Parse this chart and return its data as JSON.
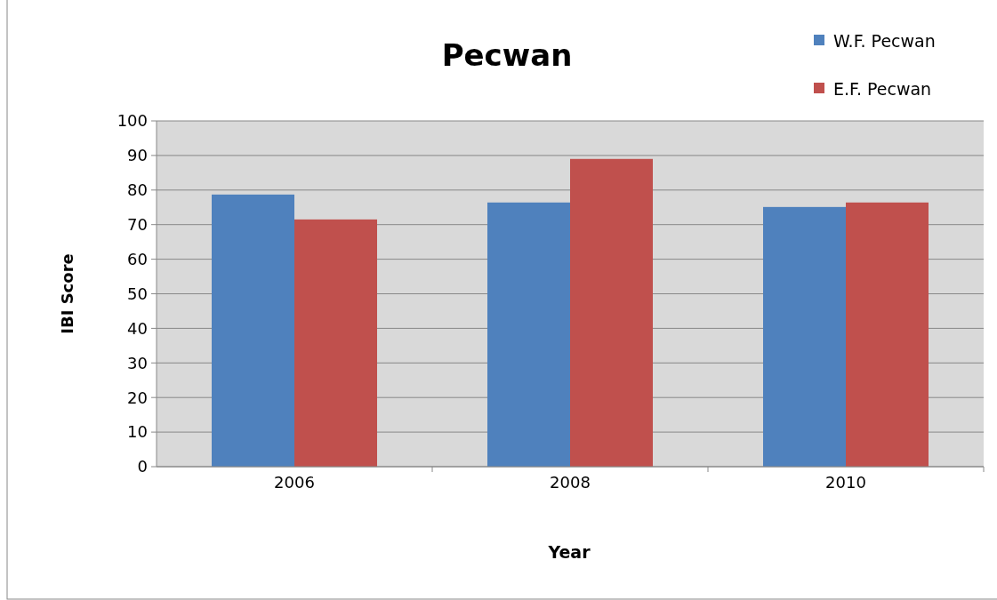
{
  "chart_data": {
    "type": "bar",
    "title": "Pecwan",
    "xlabel": "Year",
    "ylabel": "IBI Score",
    "categories": [
      "2006",
      "2008",
      "2010"
    ],
    "series": [
      {
        "name": "W.F. Pecwan",
        "color": "#4f81bd",
        "values": [
          78.7,
          76.4,
          75.1
        ]
      },
      {
        "name": "E.F. Pecwan",
        "color": "#c0504d",
        "values": [
          71.5,
          89,
          76.4
        ]
      }
    ],
    "ylim": [
      0,
      100
    ],
    "yticks": [
      0,
      10,
      20,
      30,
      40,
      50,
      60,
      70,
      80,
      90,
      100
    ],
    "grid": "y",
    "legend": "top right"
  }
}
